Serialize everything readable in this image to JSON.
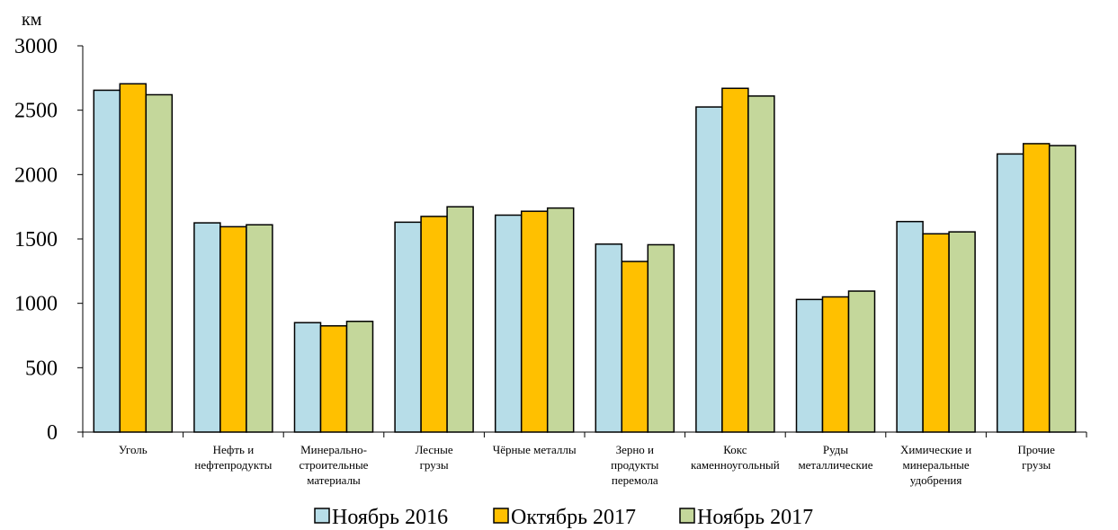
{
  "chart_data": {
    "type": "bar",
    "unit_label": "км",
    "categories": [
      [
        "Уголь"
      ],
      [
        "Нефть и",
        "нефтепродукты"
      ],
      [
        "Минерально-",
        "строительные",
        "материалы"
      ],
      [
        "Лесные",
        "грузы"
      ],
      [
        "Чёрные металлы"
      ],
      [
        "Зерно и",
        "продукты",
        "перемола"
      ],
      [
        "Кокс",
        "каменноугольный"
      ],
      [
        "Руды",
        "металлические"
      ],
      [
        "Химические и",
        "минеральные",
        "удобрения"
      ],
      [
        "Прочие",
        "грузы"
      ]
    ],
    "series": [
      {
        "name": "Ноябрь 2016",
        "color": "#B7DDE8",
        "values": [
          2655,
          1625,
          850,
          1630,
          1685,
          1460,
          2525,
          1030,
          1635,
          2160
        ]
      },
      {
        "name": "Октябрь 2017",
        "color": "#FFC000",
        "values": [
          2705,
          1595,
          825,
          1675,
          1715,
          1325,
          2670,
          1050,
          1540,
          2240
        ]
      },
      {
        "name": "Ноябрь 2017",
        "color": "#C4D79B",
        "values": [
          2620,
          1610,
          860,
          1750,
          1740,
          1455,
          2610,
          1095,
          1555,
          2225
        ]
      }
    ],
    "ylim": [
      0,
      3000
    ],
    "yticks": [
      0,
      500,
      1000,
      1500,
      2000,
      2500,
      3000
    ],
    "grid": false,
    "legend_position": "bottom"
  }
}
